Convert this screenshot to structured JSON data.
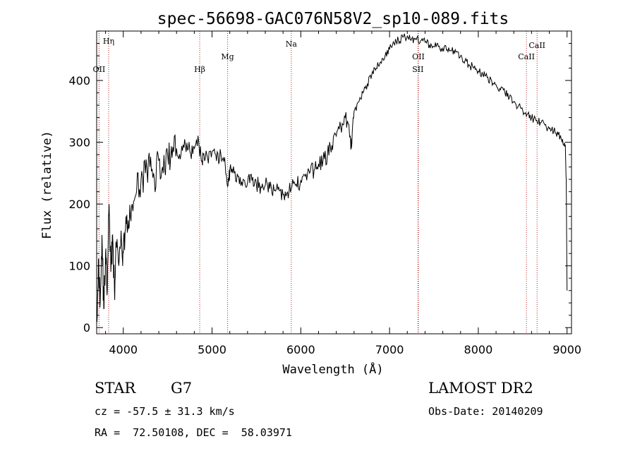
{
  "chart_data": {
    "type": "line",
    "title": "spec-56698-GAC076N58V2_sp10-089.fits",
    "xlabel": "Wavelength (Å)",
    "ylabel": "Flux (relative)",
    "xlim": [
      3700,
      9050
    ],
    "ylim": [
      -10,
      480
    ],
    "xticks": [
      4000,
      5000,
      6000,
      7000,
      8000,
      9000
    ],
    "yticks": [
      0,
      100,
      200,
      300,
      400
    ],
    "series": [
      {
        "name": "flux",
        "x": [
          3700,
          3720,
          3740,
          3760,
          3780,
          3800,
          3820,
          3840,
          3860,
          3880,
          3900,
          3920,
          3950,
          3980,
          4000,
          4030,
          4060,
          4100,
          4150,
          4200,
          4250,
          4300,
          4350,
          4400,
          4450,
          4500,
          4550,
          4600,
          4650,
          4700,
          4750,
          4800,
          4850,
          4880,
          4900,
          4950,
          5000,
          5050,
          5100,
          5150,
          5180,
          5200,
          5250,
          5300,
          5350,
          5400,
          5450,
          5500,
          5550,
          5600,
          5650,
          5700,
          5750,
          5800,
          5850,
          5900,
          5950,
          6000,
          6050,
          6100,
          6150,
          6200,
          6250,
          6300,
          6350,
          6400,
          6450,
          6500,
          6550,
          6570,
          6600,
          6650,
          6700,
          6750,
          6800,
          6850,
          6900,
          6950,
          7000,
          7050,
          7100,
          7150,
          7200,
          7250,
          7300,
          7350,
          7400,
          7450,
          7500,
          7550,
          7600,
          7650,
          7700,
          7750,
          7800,
          7850,
          7900,
          7950,
          8000,
          8050,
          8100,
          8150,
          8200,
          8250,
          8300,
          8350,
          8400,
          8450,
          8500,
          8550,
          8600,
          8650,
          8700,
          8750,
          8800,
          8850,
          8900,
          8950,
          8980,
          8990,
          9000
        ],
        "y": [
          10,
          110,
          40,
          150,
          30,
          120,
          60,
          200,
          90,
          150,
          60,
          130,
          100,
          140,
          120,
          180,
          160,
          200,
          220,
          240,
          250,
          260,
          240,
          270,
          250,
          280,
          275,
          290,
          280,
          295,
          285,
          290,
          300,
          270,
          280,
          275,
          285,
          270,
          280,
          260,
          230,
          255,
          250,
          245,
          240,
          235,
          238,
          232,
          228,
          230,
          225,
          222,
          228,
          215,
          220,
          228,
          232,
          238,
          245,
          250,
          255,
          265,
          270,
          280,
          295,
          310,
          325,
          340,
          310,
          290,
          350,
          365,
          380,
          395,
          410,
          420,
          430,
          440,
          450,
          460,
          465,
          470,
          472,
          468,
          466,
          464,
          462,
          458,
          455,
          455,
          452,
          450,
          448,
          446,
          440,
          432,
          425,
          420,
          415,
          410,
          405,
          400,
          393,
          385,
          380,
          372,
          365,
          358,
          352,
          345,
          340,
          335,
          332,
          328,
          322,
          318,
          312,
          305,
          295,
          240,
          60
        ]
      }
    ],
    "spectral_lines": [
      {
        "label": "Hη",
        "wavelength": 3835
      },
      {
        "label": "OII",
        "wavelength": 3727
      },
      {
        "label": "Hβ",
        "wavelength": 4861
      },
      {
        "label": "Mg",
        "wavelength": 5175
      },
      {
        "label": "Na",
        "wavelength": 5893
      },
      {
        "label": "OII",
        "wavelength": 7325
      },
      {
        "label": "SII",
        "wavelength": 7320
      },
      {
        "label": "CaII",
        "wavelength": 8542
      },
      {
        "label": "CaII",
        "wavelength": 8662
      }
    ]
  },
  "footer": {
    "object_class": "STAR",
    "subclass": "G7",
    "survey": "LAMOST DR2",
    "redshift_line": "cz = -57.5 ± 31.3 km/s",
    "obs_date": "Obs-Date: 20140209",
    "coords": "RA =  72.50108, DEC =  58.03971"
  },
  "colors": {
    "axis": "#000000",
    "line": "#000000",
    "marker": "#b22222"
  }
}
